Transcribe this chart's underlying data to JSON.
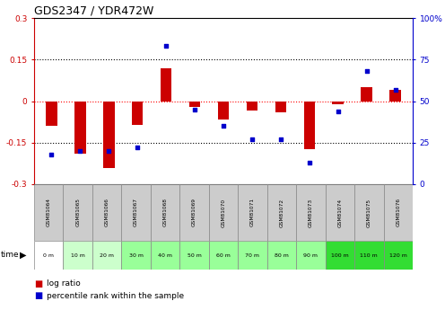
{
  "title": "GDS2347 / YDR472W",
  "samples": [
    "GSM81064",
    "GSM81065",
    "GSM81066",
    "GSM81067",
    "GSM81068",
    "GSM81069",
    "GSM81070",
    "GSM81071",
    "GSM81072",
    "GSM81073",
    "GSM81074",
    "GSM81075",
    "GSM81076"
  ],
  "time_labels": [
    "0 m",
    "10 m",
    "20 m",
    "30 m",
    "40 m",
    "50 m",
    "60 m",
    "70 m",
    "80 m",
    "90 m",
    "100 m",
    "110 m",
    "120 m"
  ],
  "log_ratio": [
    -0.09,
    -0.19,
    -0.24,
    -0.085,
    0.12,
    -0.02,
    -0.065,
    -0.035,
    -0.04,
    -0.175,
    -0.01,
    0.05,
    0.04
  ],
  "percentile_rank": [
    18,
    20,
    20,
    22,
    83,
    45,
    35,
    27,
    27,
    13,
    44,
    68,
    57
  ],
  "bar_color": "#cc0000",
  "dot_color": "#0000cc",
  "bg_color": "#ffffff",
  "left_ylim": [
    -0.3,
    0.3
  ],
  "right_ylim": [
    0,
    100
  ],
  "left_yticks": [
    -0.3,
    -0.15,
    0.0,
    0.15,
    0.3
  ],
  "right_yticks": [
    0,
    25,
    50,
    75,
    100
  ],
  "left_yticklabels": [
    "-0.3",
    "-0.15",
    "0",
    "0.15",
    "0.3"
  ],
  "right_yticklabels": [
    "0",
    "25",
    "50",
    "75",
    "100%"
  ],
  "hline_dotted_values": [
    -0.15,
    0.15
  ],
  "hline_zero_color": "#ff0000",
  "time_row_colors": [
    "#ffffff",
    "#ccffcc",
    "#ccffcc",
    "#99ff99",
    "#99ff99",
    "#99ff99",
    "#99ff99",
    "#99ff99",
    "#99ff99",
    "#99ff99",
    "#33dd33",
    "#33dd33",
    "#33dd33"
  ],
  "gsm_row_color": "#cccccc",
  "legend_log_ratio_color": "#cc0000",
  "legend_percentile_color": "#0000cc",
  "bar_width": 0.4
}
